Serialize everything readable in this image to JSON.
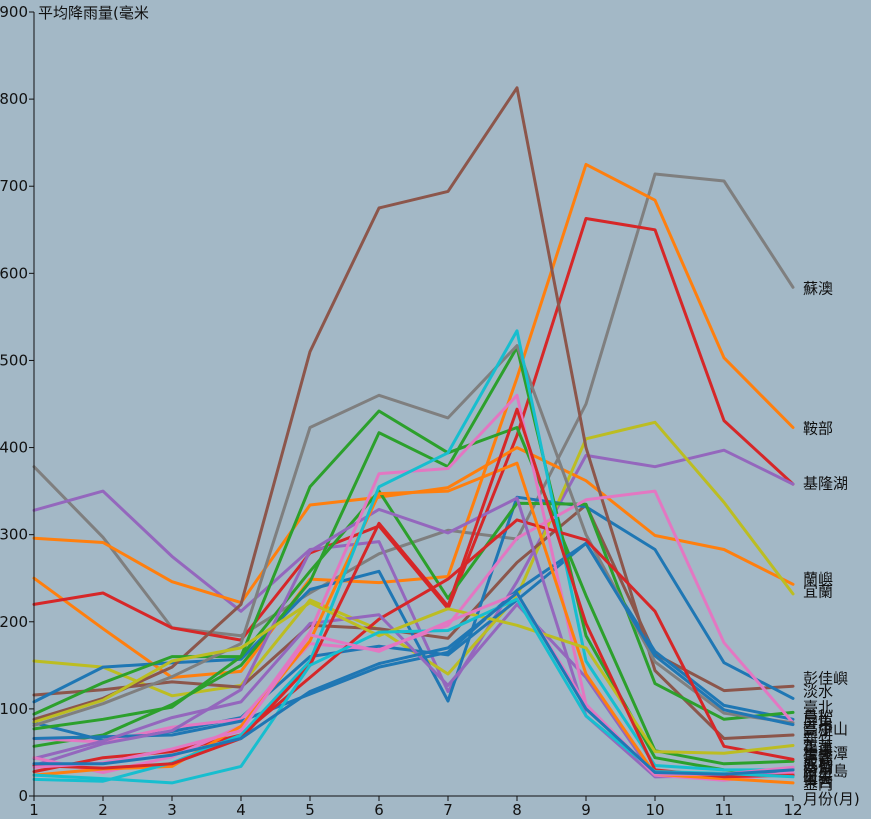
{
  "chart_data": {
    "type": "line",
    "ylabel": "平均降雨量(毫米",
    "xlabel": "月份(月)",
    "x": [
      1,
      2,
      3,
      4,
      5,
      6,
      7,
      8,
      9,
      10,
      11,
      12
    ],
    "xlim": [
      1,
      12
    ],
    "ylim": [
      0,
      900
    ],
    "x_ticks": [
      "1",
      "2",
      "3",
      "4",
      "5",
      "6",
      "7",
      "8",
      "9",
      "10",
      "11",
      "12"
    ],
    "y_ticks": [
      "0",
      "100",
      "200",
      "300",
      "400",
      "500",
      "600",
      "700",
      "800",
      "900"
    ],
    "grid": false,
    "series": [
      {
        "name": "蘇澳",
        "color": "#7f7f7f",
        "values": [
          378,
          297,
          193,
          184,
          233,
          278,
          305,
          295,
          450,
          714,
          706,
          584
        ]
      },
      {
        "name": "鞍部",
        "color": "#ff7f0e",
        "values": [
          250,
          192,
          136,
          143,
          249,
          245,
          252,
          480,
          725,
          684,
          503,
          423
        ]
      },
      {
        "name": "基隆",
        "color": "#d62728",
        "values": [
          220,
          233,
          193,
          179,
          279,
          310,
          215,
          414,
          663,
          650,
          431,
          358
        ]
      },
      {
        "name": "竹子湖",
        "color": "#9467bd",
        "values": [
          328,
          350,
          275,
          212,
          283,
          292,
          120,
          246,
          391,
          378,
          397,
          358
        ]
      },
      {
        "name": "蘭嶼",
        "color": "#ff7f0e",
        "values": [
          296,
          291,
          246,
          222,
          334,
          343,
          354,
          400,
          362,
          299,
          283,
          243
        ]
      },
      {
        "name": "宜蘭",
        "color": "#bcbd22",
        "values": [
          155,
          148,
          115,
          127,
          225,
          191,
          140,
          229,
          410,
          429,
          337,
          232
        ]
      },
      {
        "name": "彭佳嶼",
        "color": "#8c564b",
        "values": [
          116,
          122,
          131,
          125,
          196,
          192,
          181,
          268,
          334,
          163,
          121,
          126
        ]
      },
      {
        "name": "淡水",
        "color": "#1f77b4",
        "values": [
          108,
          148,
          153,
          157,
          237,
          258,
          109,
          343,
          332,
          283,
          153,
          112
        ]
      },
      {
        "name": "臺北",
        "color": "#1f77b4",
        "values": [
          84,
          64,
          74,
          90,
          160,
          172,
          162,
          225,
          290,
          166,
          104,
          88
        ]
      },
      {
        "name": "鳥松",
        "color": "#8c564b",
        "values": [
          88,
          112,
          148,
          220,
          510,
          675,
          694,
          813,
          400,
          144,
          66,
          70
        ]
      },
      {
        "name": "屏東",
        "color": "#2ca02c",
        "values": [
          94,
          130,
          160,
          160,
          355,
          442,
          394,
          423,
          230,
          52,
          37,
          40
        ]
      },
      {
        "name": "高雄",
        "color": "#2ca02c",
        "values": [
          57,
          70,
          105,
          150,
          246,
          417,
          378,
          515,
          184,
          44,
          30,
          24
        ]
      },
      {
        "name": "臺中",
        "color": "#2ca02c",
        "values": [
          77,
          88,
          102,
          160,
          258,
          350,
          227,
          336,
          335,
          129,
          88,
          96
        ]
      },
      {
        "name": "新竹",
        "color": "#e377c2",
        "values": [
          66,
          62,
          79,
          88,
          175,
          168,
          196,
          296,
          340,
          350,
          176,
          84
        ]
      },
      {
        "name": "花蓮",
        "color": "#7f7f7f",
        "values": [
          81,
          106,
          137,
          175,
          423,
          460,
          434,
          517,
          300,
          154,
          95,
          84
        ]
      },
      {
        "name": "臺東",
        "color": "#1f77b4",
        "values": [
          66,
          68,
          70,
          86,
          117,
          148,
          165,
          236,
          290,
          161,
          99,
          82
        ]
      },
      {
        "name": "梧棲",
        "color": "#d62728",
        "values": [
          28,
          44,
          51,
          70,
          136,
          203,
          249,
          317,
          294,
          212,
          57,
          42
        ]
      },
      {
        "name": "嘉義",
        "color": "#9467bd",
        "values": [
          35,
          60,
          75,
          122,
          281,
          329,
          302,
          342,
          92,
          22,
          23,
          26
        ]
      },
      {
        "name": "大武",
        "color": "#9467bd",
        "values": [
          43,
          63,
          90,
          108,
          198,
          208,
          127,
          220,
          136,
          22,
          24,
          32
        ]
      },
      {
        "name": "成功",
        "color": "#e377c2",
        "values": [
          44,
          27,
          45,
          80,
          188,
          370,
          376,
          460,
          105,
          24,
          18,
          27
        ]
      },
      {
        "name": "澎湖",
        "color": "#ff7f0e",
        "values": [
          24,
          31,
          34,
          80,
          178,
          347,
          350,
          382,
          140,
          25,
          20,
          15
        ]
      },
      {
        "name": "日月潭",
        "color": "#17becf",
        "values": [
          19,
          17,
          38,
          70,
          155,
          355,
          394,
          534,
          155,
          35,
          30,
          30
        ]
      },
      {
        "name": "阿里山",
        "color": "#bcbd22",
        "values": [
          85,
          110,
          155,
          170,
          222,
          184,
          215,
          196,
          170,
          51,
          49,
          58
        ]
      },
      {
        "name": "恆春",
        "color": "#d62728",
        "values": [
          35,
          32,
          37,
          66,
          150,
          313,
          218,
          444,
          198,
          30,
          22,
          24
        ]
      },
      {
        "name": "東吉島",
        "color": "#17becf",
        "values": [
          24,
          20,
          15,
          34,
          150,
          188,
          190,
          226,
          92,
          28,
          26,
          22
        ]
      },
      {
        "name": "金門",
        "color": "#e377c2",
        "values": [
          33,
          38,
          54,
          75,
          185,
          166,
          200,
          232,
          105,
          25,
          25,
          33
        ]
      },
      {
        "name": "馬祖",
        "color": "#1f77b4",
        "values": [
          37,
          37,
          47,
          66,
          120,
          152,
          170,
          233,
          100,
          27,
          25,
          30
        ]
      }
    ],
    "end_labels": [
      {
        "text": "蘇澳",
        "value": 584
      },
      {
        "text": "鞍部",
        "value": 423
      },
      {
        "text": "基隆湖",
        "value": 360
      },
      {
        "text": "蘭嶼",
        "value": 250
      },
      {
        "text": "宜蘭",
        "value": 236
      },
      {
        "text": "彭佳嶼",
        "value": 136
      },
      {
        "text": "淡水",
        "value": 121
      },
      {
        "text": "臺北",
        "value": 103
      },
      {
        "text": "鳥松",
        "value": 92
      },
      {
        "text": "屏東",
        "value": 86
      },
      {
        "text": "高雄",
        "value": 77
      },
      {
        "text": "臺中山",
        "value": 78
      },
      {
        "text": "新竹",
        "value": 66
      },
      {
        "text": "花蓮",
        "value": 58
      },
      {
        "text": "臺東",
        "value": 55
      },
      {
        "text": "梧棲潭",
        "value": 50
      },
      {
        "text": "嘉義",
        "value": 46
      },
      {
        "text": "大武",
        "value": 42
      },
      {
        "text": "成功",
        "value": 38
      },
      {
        "text": "澎湖",
        "value": 34
      },
      {
        "text": "日月島",
        "value": 30
      },
      {
        "text": "阿里",
        "value": 26
      },
      {
        "text": "恆春",
        "value": 22
      },
      {
        "text": "東吉",
        "value": 18
      },
      {
        "text": "金門",
        "value": 15
      }
    ]
  }
}
